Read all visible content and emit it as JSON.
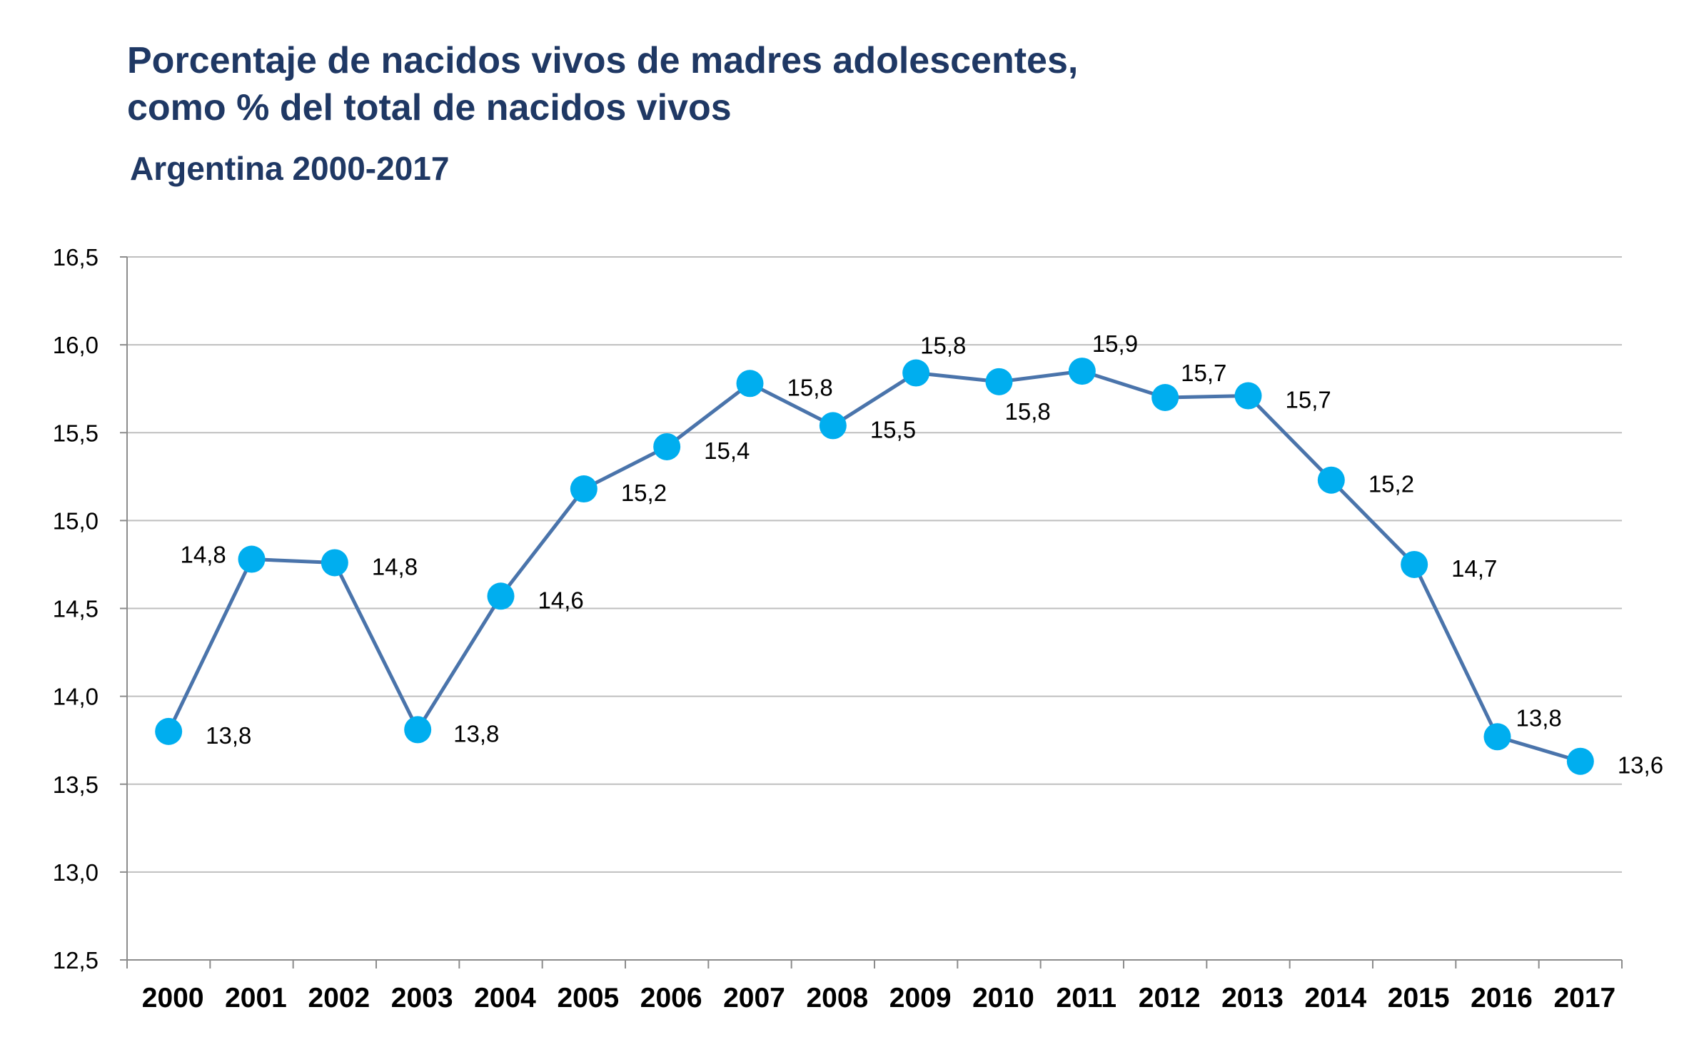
{
  "chart_data": {
    "type": "line",
    "title": "Porcentaje de nacidos vivos de madres adolescentes,",
    "title_line2": "como % del total de nacidos vivos",
    "subtitle": "Argentina 2000-2017",
    "categories": [
      "2000",
      "2001",
      "2002",
      "2003",
      "2004",
      "2005",
      "2006",
      "2007",
      "2008",
      "2009",
      "2010",
      "2011",
      "2012",
      "2013",
      "2014",
      "2015",
      "2016",
      "2017"
    ],
    "series": [
      {
        "values": [
          13.8,
          14.78,
          14.76,
          13.81,
          14.57,
          15.18,
          15.42,
          15.78,
          15.54,
          15.84,
          15.79,
          15.85,
          15.7,
          15.71,
          15.23,
          14.75,
          13.77,
          13.63
        ],
        "data_labels": [
          "13,8",
          "14,8",
          "14,8",
          "13,8",
          "14,6",
          "15,2",
          "15,4",
          "15,8",
          "15,5",
          "15,8",
          "15,8",
          "15,9",
          "15,7",
          "15,7",
          "15,2",
          "14,7",
          "13,8",
          "13,6"
        ],
        "line_color": "#4a74ab",
        "marker_color": "#00aeef"
      }
    ],
    "ylim": [
      12.5,
      16.5
    ],
    "y_ticks": [
      12.5,
      13.0,
      13.5,
      14.0,
      14.5,
      15.0,
      15.5,
      16.0,
      16.5
    ],
    "y_tick_labels": [
      "12,5",
      "13,0",
      "13,5",
      "14,0",
      "14,5",
      "15,0",
      "15,5",
      "16,0",
      "16,5"
    ],
    "xlabel": "",
    "ylabel": "",
    "grid": true,
    "legend": "none"
  },
  "colors": {
    "title": "#1f3864",
    "grid": "#bfbfbf",
    "axis": "#8c8c8c"
  }
}
